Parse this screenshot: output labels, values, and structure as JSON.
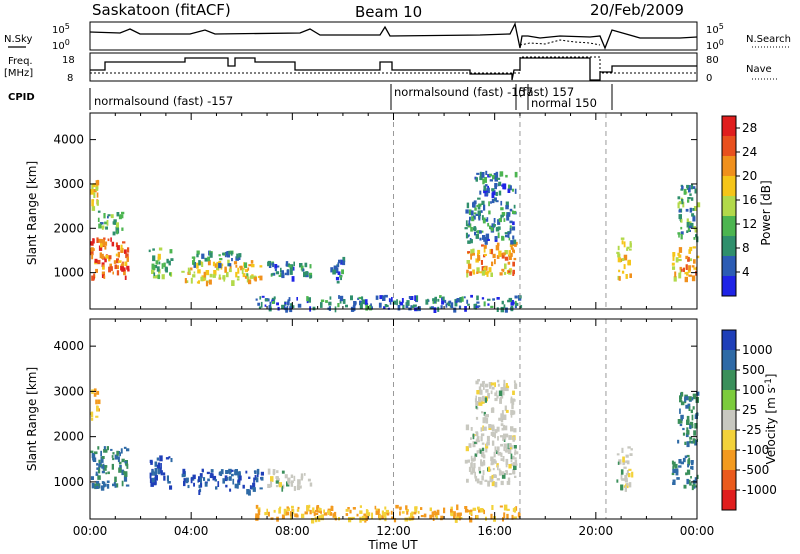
{
  "header": {
    "station": "Saskatoon (fitACF)",
    "beam": "Beam 10",
    "date": "20/Feb/2009"
  },
  "panel_labels": {
    "nsky": "N.Sky",
    "nsearch": "N.Search",
    "freq_line1": "Freq.",
    "freq_line2": "[MHz]",
    "nave": "Nave",
    "cpid": "CPID"
  },
  "strip_ticks": {
    "noise_left": [
      "10^5",
      "10^0"
    ],
    "noise_right": [
      "10^5",
      "10^0"
    ],
    "freq_left": [
      "18",
      "8"
    ],
    "nave_right": [
      "80",
      "0"
    ]
  },
  "cpid_modes": [
    {
      "label": "normalsound (fast) -157",
      "start_h": 0.0,
      "end_h": 12.0
    },
    {
      "label": "normalsound (fast) -157",
      "start_h": 12.0,
      "end_h": 17.0
    },
    {
      "label": "(fast) 157",
      "start_h": 17.0,
      "end_h": 20.4
    },
    {
      "label": "normal 150",
      "start_h": 17.0,
      "end_h": 20.4
    }
  ],
  "colors": {
    "power_scale": [
      "#1f24e6",
      "#2c5cb4",
      "#2f8f6c",
      "#4cb550",
      "#b2d94a",
      "#f5c519",
      "#f0901c",
      "#e8501e",
      "#e01e1e"
    ],
    "velocity_scale": [
      "#1f3fb8",
      "#2e6aa6",
      "#3a8f5a",
      "#7ccb3c",
      "#c8c8c0",
      "#f3d23a",
      "#f39a1f",
      "#ea5a1c",
      "#e01e1e"
    ]
  },
  "chart_data": [
    {
      "type": "heatmap",
      "title": "Power",
      "xlabel": "",
      "ylabel": "Slant Range [km]",
      "x_tick_labels": [
        "00:00",
        "04:00",
        "08:00",
        "12:00",
        "16:00",
        "20:00",
        "00:00"
      ],
      "xlim_hours": [
        0,
        24
      ],
      "ylim": [
        180,
        4600
      ],
      "y_tick_labels": [
        "1000",
        "2000",
        "3000",
        "4000"
      ],
      "colorbar": {
        "label": "Power [dB]",
        "ticks": [
          "4",
          "8",
          "12",
          "16",
          "20",
          "24",
          "28"
        ],
        "range": [
          0,
          30
        ]
      },
      "cpid_boundaries_h": [
        12.0,
        17.0,
        20.4
      ],
      "echo_regions": [
        {
          "t": [
            0.0,
            1.5
          ],
          "r": [
            900,
            1800
          ],
          "value": 24
        },
        {
          "t": [
            0.0,
            0.3
          ],
          "r": [
            2400,
            3100
          ],
          "value": 18
        },
        {
          "t": [
            0.3,
            1.3
          ],
          "r": [
            1900,
            2400
          ],
          "value": 10
        },
        {
          "t": [
            2.3,
            3.2
          ],
          "r": [
            900,
            1600
          ],
          "value": 12
        },
        {
          "t": [
            3.6,
            6.8
          ],
          "r": [
            800,
            1300
          ],
          "value": 18
        },
        {
          "t": [
            4.0,
            6.0
          ],
          "r": [
            1200,
            1500
          ],
          "value": 8
        },
        {
          "t": [
            7.0,
            8.7
          ],
          "r": [
            900,
            1300
          ],
          "value": 8
        },
        {
          "t": [
            9.5,
            10.0
          ],
          "r": [
            800,
            1400
          ],
          "value": 6
        },
        {
          "t": [
            14.8,
            16.8
          ],
          "r": [
            1000,
            1700
          ],
          "value": 20
        },
        {
          "t": [
            14.8,
            16.8
          ],
          "r": [
            1700,
            2700
          ],
          "value": 8
        },
        {
          "t": [
            15.2,
            16.8
          ],
          "r": [
            2800,
            3300
          ],
          "value": 6
        },
        {
          "t": [
            20.8,
            21.4
          ],
          "r": [
            900,
            1800
          ],
          "value": 18
        },
        {
          "t": [
            23.0,
            24.0
          ],
          "r": [
            900,
            1600
          ],
          "value": 20
        },
        {
          "t": [
            23.2,
            24.0
          ],
          "r": [
            1800,
            3000
          ],
          "value": 10
        },
        {
          "t": [
            6.5,
            17.0
          ],
          "r": [
            200,
            500
          ],
          "value": 6
        }
      ]
    },
    {
      "type": "heatmap",
      "title": "Velocity",
      "xlabel": "Time UT",
      "ylabel": "Slant Range [km]",
      "x_tick_labels": [
        "00:00",
        "04:00",
        "08:00",
        "12:00",
        "16:00",
        "20:00",
        "00:00"
      ],
      "xlim_hours": [
        0,
        24
      ],
      "ylim": [
        180,
        4600
      ],
      "y_tick_labels": [
        "1000",
        "2000",
        "3000",
        "4000"
      ],
      "colorbar": {
        "label": "Velocity [m s^-1]",
        "ticks": [
          "1000",
          "500",
          "100",
          "25",
          "-25",
          "-100",
          "-500",
          "-1000"
        ]
      },
      "cpid_boundaries_h": [
        12.0,
        17.0,
        20.4
      ],
      "echo_regions": [
        {
          "t": [
            0.0,
            1.5
          ],
          "r": [
            900,
            1800
          ],
          "value": 100
        },
        {
          "t": [
            0.0,
            0.3
          ],
          "r": [
            2400,
            3100
          ],
          "value": -100
        },
        {
          "t": [
            2.3,
            3.2
          ],
          "r": [
            900,
            1600
          ],
          "value": 500
        },
        {
          "t": [
            3.6,
            6.8
          ],
          "r": [
            800,
            1300
          ],
          "value": 500
        },
        {
          "t": [
            7.0,
            8.7
          ],
          "r": [
            900,
            1300
          ],
          "value": 0
        },
        {
          "t": [
            14.8,
            16.8
          ],
          "r": [
            1000,
            2300
          ],
          "value": 0
        },
        {
          "t": [
            15.2,
            16.8
          ],
          "r": [
            2400,
            3300
          ],
          "value": 0
        },
        {
          "t": [
            20.8,
            21.4
          ],
          "r": [
            900,
            1800
          ],
          "value": 0
        },
        {
          "t": [
            23.0,
            24.0
          ],
          "r": [
            900,
            1600
          ],
          "value": 100
        },
        {
          "t": [
            23.2,
            24.0
          ],
          "r": [
            1800,
            3000
          ],
          "value": 100
        },
        {
          "t": [
            6.5,
            17.0
          ],
          "r": [
            200,
            500
          ],
          "value": -100
        }
      ]
    }
  ]
}
